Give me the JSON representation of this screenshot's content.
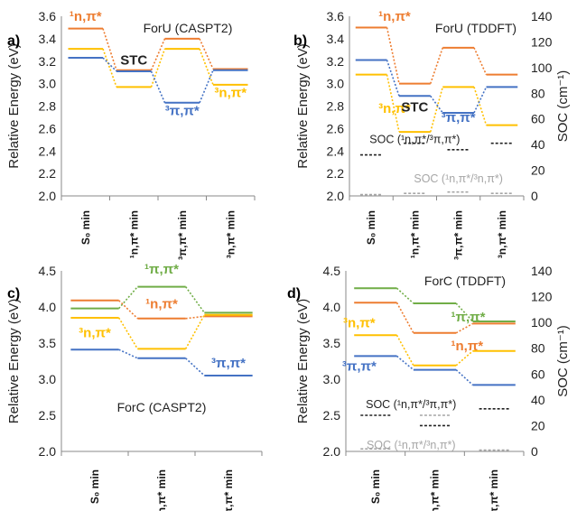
{
  "colors": {
    "orange": "#ED7D31",
    "yellow": "#FFC000",
    "blue": "#4472C4",
    "green": "#70AD47",
    "black": "#222222",
    "gray": "#A6A6A6"
  },
  "chart_data": [
    {
      "panel": "a)",
      "title": "ForU (CASPT2)",
      "type": "line",
      "ylabel": "Relative Energy (eV)",
      "ylim": [
        2.0,
        3.6
      ],
      "yticks": [
        2.0,
        2.2,
        2.4,
        2.6,
        2.8,
        3.0,
        3.2,
        3.4,
        3.6
      ],
      "categories": [
        "S₀ min",
        "¹n,π* min",
        "³π,π* min",
        "³n,π* min"
      ],
      "series": [
        {
          "name": "¹n,π*",
          "color": "#ED7D31",
          "values": [
            3.49,
            3.12,
            3.4,
            3.13
          ]
        },
        {
          "name": "³n,π*",
          "color": "#FFC000",
          "values": [
            3.31,
            2.97,
            3.31,
            2.99
          ]
        },
        {
          "name": "³π,π*",
          "color": "#4472C4",
          "values": [
            3.23,
            3.11,
            2.83,
            3.12
          ]
        }
      ],
      "annotations": [
        {
          "text": "¹n,π*",
          "color": "#ED7D31",
          "x": 0,
          "y": 3.56,
          "align": "middle"
        },
        {
          "text": "STC",
          "color": "#222222",
          "x": 1,
          "y": 3.17,
          "align": "middle"
        },
        {
          "text": "³π,π*",
          "color": "#4472C4",
          "x": 2,
          "y": 2.72,
          "align": "middle"
        },
        {
          "text": "³n,π*",
          "color": "#FFC000",
          "x": 3,
          "y": 2.88,
          "align": "middle"
        }
      ]
    },
    {
      "panel": "b)",
      "title": "ForU (TDDFT)",
      "type": "line",
      "ylabel": "Relative Energy (eV)",
      "ylim": [
        2.0,
        3.6
      ],
      "yticks": [
        2.0,
        2.2,
        2.4,
        2.6,
        2.8,
        3.0,
        3.2,
        3.4,
        3.6
      ],
      "y2label": "SOC (cm⁻¹)",
      "y2lim": [
        0,
        140
      ],
      "y2ticks": [
        0,
        20,
        40,
        60,
        80,
        100,
        120,
        140
      ],
      "categories": [
        "S₀ min",
        "¹n,π* min",
        "³π,π* min",
        "³n,π* min"
      ],
      "series": [
        {
          "name": "¹n,π*",
          "color": "#ED7D31",
          "values": [
            3.5,
            3.0,
            3.32,
            3.08
          ]
        },
        {
          "name": "³n,π*",
          "color": "#FFC000",
          "values": [
            3.08,
            2.57,
            2.97,
            2.63
          ]
        },
        {
          "name": "³π,π*",
          "color": "#4472C4",
          "values": [
            3.21,
            2.89,
            2.74,
            2.97
          ]
        }
      ],
      "soc_series": [
        {
          "name": "SOC (¹n,π*/³π,π*)",
          "color": "#222222",
          "values": [
            32,
            41,
            36,
            41
          ]
        },
        {
          "name": "SOC (¹n,π*/³n,π*)",
          "color": "#A6A6A6",
          "values": [
            1,
            2,
            3,
            2
          ]
        }
      ],
      "annotations": [
        {
          "text": "¹n,π*",
          "color": "#ED7D31",
          "x": 0,
          "y": 3.56,
          "align": "start",
          "dx": 8
        },
        {
          "text": "³n,π*",
          "color": "#FFC000",
          "x": 0,
          "y": 2.74,
          "align": "start",
          "dx": 8
        },
        {
          "text": "STC",
          "color": "#222222",
          "x": 1,
          "y": 2.75,
          "align": "middle"
        },
        {
          "text": "³π,π*",
          "color": "#4472C4",
          "x": 2,
          "y": 2.66,
          "align": "middle"
        },
        {
          "text": "SOC (¹n,π*/³π,π*)",
          "color": "#222222",
          "x": 1,
          "y": 2.47,
          "align": "middle",
          "soc": true
        },
        {
          "text": "SOC (¹n,π*/³n,π*)",
          "color": "#A6A6A6",
          "x": 2,
          "y": 2.12,
          "align": "middle",
          "soc": true
        }
      ]
    },
    {
      "panel": "c)",
      "title": "ForC (CASPT2)",
      "type": "line",
      "ylabel": "Relative Energy (eV)",
      "ylim": [
        2.0,
        4.5
      ],
      "yticks": [
        2.0,
        2.5,
        3.0,
        3.5,
        4.0,
        4.5
      ],
      "categories": [
        "S₀ min",
        "¹n,π* min",
        "³π,π* min"
      ],
      "series": [
        {
          "name": "¹π,π*",
          "color": "#70AD47",
          "values": [
            3.98,
            4.28,
            3.92
          ]
        },
        {
          "name": "¹n,π*",
          "color": "#ED7D31",
          "values": [
            4.09,
            3.84,
            3.87
          ]
        },
        {
          "name": "³n,π*",
          "color": "#FFC000",
          "values": [
            3.85,
            3.42,
            3.89
          ]
        },
        {
          "name": "³π,π*",
          "color": "#4472C4",
          "values": [
            3.41,
            3.29,
            3.05
          ]
        }
      ],
      "annotations": [
        {
          "text": "¹π,π*",
          "color": "#70AD47",
          "x": 1,
          "y": 4.46,
          "align": "middle"
        },
        {
          "text": "¹n,π*",
          "color": "#ED7D31",
          "x": 1,
          "y": 3.98,
          "align": "middle"
        },
        {
          "text": "³n,π*",
          "color": "#FFC000",
          "x": 0,
          "y": 3.58,
          "align": "middle"
        },
        {
          "text": "³π,π*",
          "color": "#4472C4",
          "x": 2,
          "y": 3.16,
          "align": "middle"
        },
        {
          "text": "ForC (CASPT2)",
          "color": "#222222",
          "x": 1,
          "y": 2.55,
          "align": "middle",
          "plain": true
        }
      ]
    },
    {
      "panel": "d)",
      "title": "ForC (TDDFT)",
      "type": "line",
      "ylabel": "Relative Energy (eV)",
      "ylim": [
        2.0,
        4.5
      ],
      "yticks": [
        2.0,
        2.5,
        3.0,
        3.5,
        4.0,
        4.5
      ],
      "y2label": "SOC (cm⁻¹)",
      "y2lim": [
        0,
        140
      ],
      "y2ticks": [
        0,
        20,
        40,
        60,
        80,
        100,
        120,
        140
      ],
      "categories": [
        "S₀ min",
        "¹n,π* min",
        "³π,π* min"
      ],
      "series": [
        {
          "name": "¹π,π*",
          "color": "#70AD47",
          "values": [
            4.26,
            4.05,
            3.8
          ]
        },
        {
          "name": "¹n,π*",
          "color": "#ED7D31",
          "values": [
            4.06,
            3.64,
            3.77
          ]
        },
        {
          "name": "³n,π*",
          "color": "#FFC000",
          "values": [
            3.61,
            3.19,
            3.39
          ]
        },
        {
          "name": "³π,π*",
          "color": "#4472C4",
          "values": [
            3.32,
            3.13,
            2.92
          ]
        }
      ],
      "soc_series": [
        {
          "name": "SOC (¹n,π*/³π,π*)",
          "color": "#222222",
          "values": [
            28,
            20,
            33
          ]
        },
        {
          "name": "SOC (¹n,π*/³n,π*)",
          "color": "#A6A6A6",
          "values": [
            2,
            28,
            1
          ]
        }
      ],
      "annotations": [
        {
          "text": "³n,π*",
          "color": "#FFC000",
          "x": 0,
          "y": 3.72,
          "align": "middle",
          "dx": -18
        },
        {
          "text": "³π,π*",
          "color": "#4472C4",
          "x": 0,
          "y": 3.12,
          "align": "middle",
          "dx": -18
        },
        {
          "text": "¹π,π*",
          "color": "#70AD47",
          "x": 1,
          "y": 3.8,
          "align": "start",
          "dx": 18
        },
        {
          "text": "¹n,π*",
          "color": "#ED7D31",
          "x": 1,
          "y": 3.4,
          "align": "start",
          "dx": 18
        },
        {
          "text": "SOC (¹n,π*/³π,π*)",
          "color": "#222222",
          "x": 0.6,
          "y": 2.6,
          "align": "middle",
          "soc": true
        },
        {
          "text": "SOC (¹n,π*/³n,π*)",
          "color": "#A6A6A6",
          "x": 0.6,
          "y": 2.04,
          "align": "middle",
          "soc": true
        }
      ]
    }
  ]
}
